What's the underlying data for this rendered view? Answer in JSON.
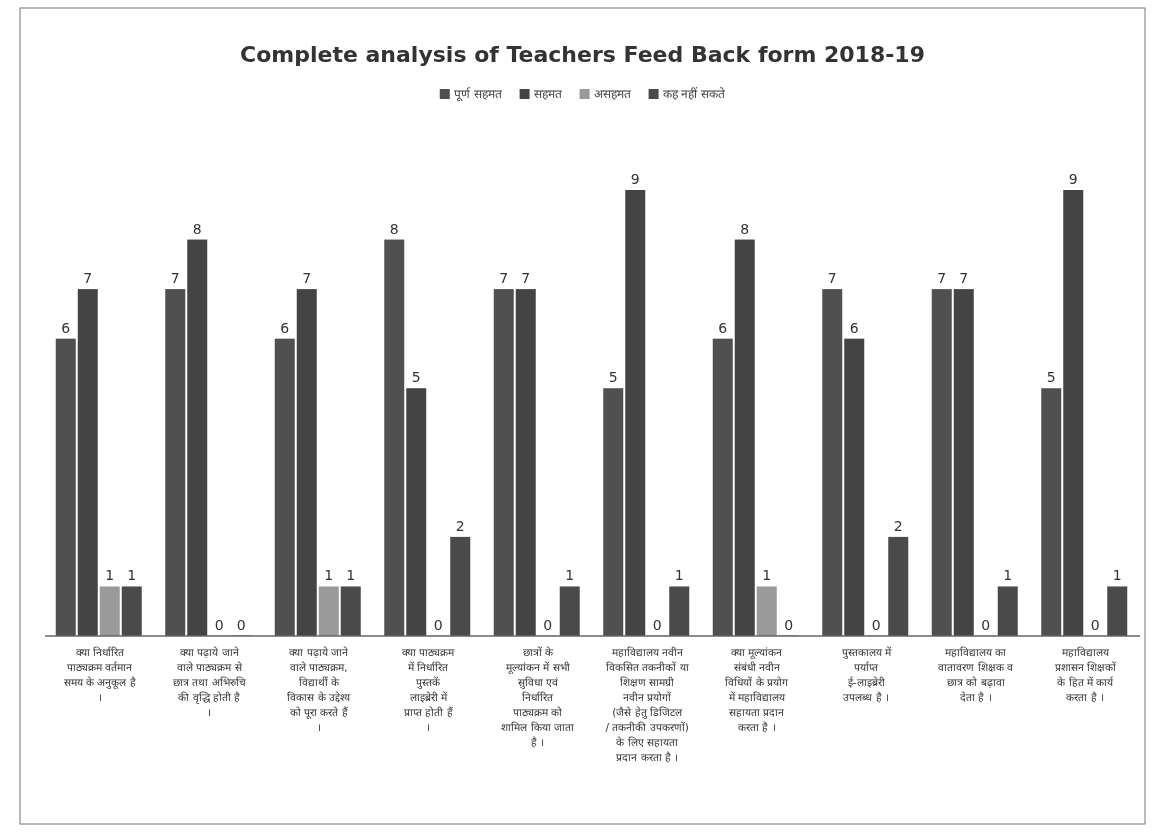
{
  "chart_data": {
    "type": "bar",
    "title": "Complete analysis of Teachers Feed Back form 2018-19",
    "categories": [
      "क्या निर्धारित पाठ्यक्रम वर्तमान समय के अनुकूल है ।",
      "क्या पढ़ाये जाने वाले पाठ्यक्रम से छात्र तथा अभिरुचि की वृद्धि होती है ।",
      "क्या पढ़ाये जाने वाले पाठ्यक्रम, विद्यार्थी के विकास के उद्देश्य को पूरा करते हैं ।",
      "क्या पाठ्यक्रम में निर्धारित पुस्तकें लाइब्रेरी में प्राप्त होती हैं ।",
      "छात्रों के मूल्यांकन में सभी सुविधा एवं निर्धारित पाठ्यक्रम को शामिल किया जाता है ।",
      "महाविद्यालय नवीन विकसित तकनीकों या शिक्षण सामग्री नवीन प्रयोगों (जैसे हेतु डिजिटल / तकनीकी उपकरणों) के लिए सहायता प्रदान करता है ।",
      "क्या मूल्यांकन संबंधी नवीन विधियों के प्रयोग में महाविद्यालय सहायता प्रदान करता है ।",
      "पुस्तकालय में पर्याप्त ई-लाइब्रेरी उपलब्ध है ।",
      "महाविद्यालय का वातावरण शिक्षक व छात्र को बढ़ावा देता है ।",
      "महाविद्यालय प्रशासन शिक्षकों के हित में कार्य करता है ।"
    ],
    "series": [
      {
        "name": "पूर्ण सहमत",
        "color": "#505050",
        "values": [
          6,
          7,
          6,
          8,
          7,
          5,
          6,
          7,
          7,
          5
        ]
      },
      {
        "name": "सहमत",
        "color": "#444444",
        "values": [
          7,
          8,
          7,
          5,
          7,
          9,
          8,
          6,
          7,
          9
        ]
      },
      {
        "name": "असहमत",
        "color": "#9a9a9a",
        "values": [
          1,
          0,
          1,
          0,
          0,
          0,
          1,
          0,
          0,
          0
        ]
      },
      {
        "name": "कह नहीं सकते",
        "color": "#4a4a4a",
        "values": [
          1,
          0,
          1,
          2,
          1,
          1,
          0,
          2,
          1,
          1
        ]
      }
    ],
    "data_labels": true,
    "legend": "top"
  }
}
